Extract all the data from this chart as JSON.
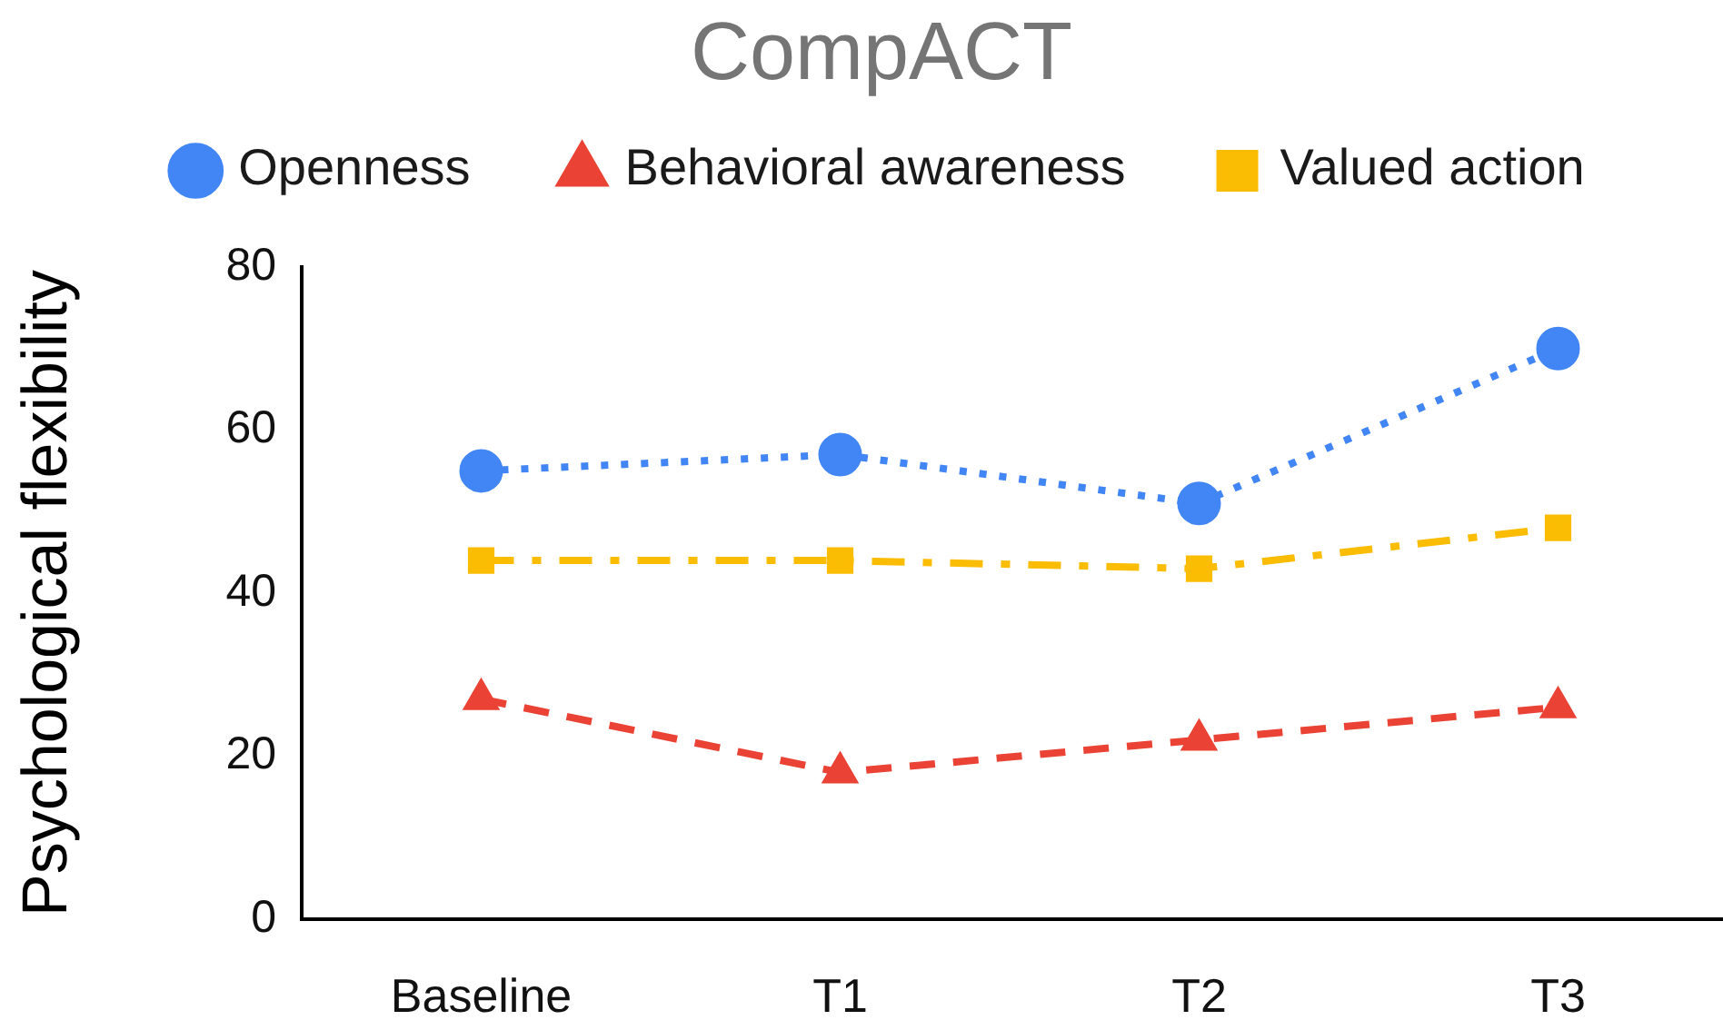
{
  "chart_data": {
    "type": "line",
    "title": "CompACT",
    "ylabel": "Psychological flexibility",
    "categories": [
      "Baseline",
      "T1",
      "T2",
      "T3"
    ],
    "series": [
      {
        "name": "Openness",
        "color": "#4285f4",
        "values": [
          55,
          57,
          51,
          70
        ],
        "marker": "circle",
        "line_style": "dotted"
      },
      {
        "name": "Behavioral awareness",
        "color": "#ea4335",
        "values": [
          27,
          18,
          22,
          26
        ],
        "marker": "triangle",
        "line_style": "dashed"
      },
      {
        "name": "Valued action",
        "color": "#fbbc04",
        "values": [
          44,
          44,
          43,
          48
        ],
        "marker": "square",
        "line_style": "dashdot"
      }
    ],
    "ylim": [
      0,
      80
    ],
    "yticks": [
      0,
      20,
      40,
      60,
      80
    ],
    "grid": false,
    "legend": "top"
  }
}
